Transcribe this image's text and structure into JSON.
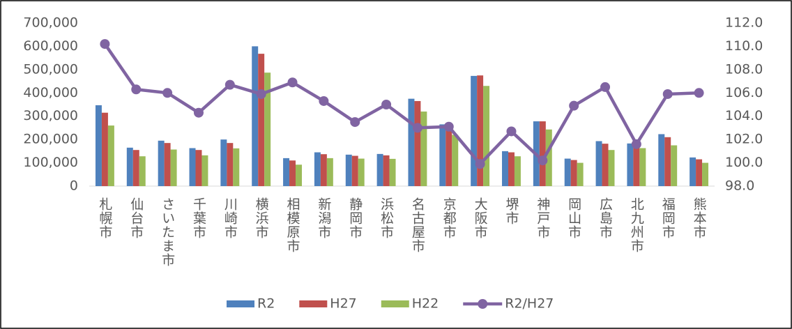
{
  "chart_data": {
    "type": "bar_line",
    "categories": [
      "札幌市",
      "仙台市",
      "さいたま市",
      "千葉市",
      "川崎市",
      "横浜市",
      "相模原市",
      "新潟市",
      "静岡市",
      "浜松市",
      "名古屋市",
      "京都市",
      "大阪市",
      "堺市",
      "神戸市",
      "岡山市",
      "広島市",
      "北九州市",
      "福岡市",
      "熊本市"
    ],
    "series": [
      {
        "name": "R2",
        "color": "#4f81bd",
        "values": [
          347000,
          165000,
          195000,
          163000,
          200000,
          600000,
          120000,
          145000,
          135000,
          138000,
          375000,
          265000,
          473000,
          150000,
          278000,
          118000,
          193000,
          183000,
          223000,
          123000
        ]
      },
      {
        "name": "H27",
        "color": "#c0504d",
        "values": [
          315000,
          155000,
          185000,
          155000,
          185000,
          568000,
          110000,
          137000,
          130000,
          132000,
          365000,
          255000,
          475000,
          145000,
          278000,
          112000,
          182000,
          175000,
          210000,
          115000
        ]
      },
      {
        "name": "H22",
        "color": "#9bbb59",
        "values": [
          260000,
          128000,
          157000,
          132000,
          162000,
          487000,
          92000,
          120000,
          118000,
          117000,
          320000,
          220000,
          430000,
          128000,
          243000,
          100000,
          155000,
          163000,
          175000,
          100000
        ]
      },
      {
        "name": "R2/H27",
        "color": "#8064a2",
        "axis": "y2",
        "values": [
          110.2,
          106.3,
          106.0,
          104.3,
          106.7,
          105.9,
          106.9,
          105.3,
          103.5,
          105.0,
          103.0,
          103.1,
          99.9,
          102.7,
          100.2,
          104.9,
          106.5,
          101.6,
          105.9,
          106.0
        ]
      }
    ],
    "ylim": [
      0,
      700000
    ],
    "yticks": [
      0,
      {
        "value": 100000,
        "label": "100,000"
      },
      {
        "value": 200000,
        "label": "200,000"
      },
      {
        "value": 300000,
        "label": "300,000"
      },
      {
        "value": 400000,
        "label": "400,000"
      },
      {
        "value": 500000,
        "label": "500,000"
      },
      {
        "value": 600000,
        "label": "600,000"
      },
      {
        "value": 700000,
        "label": "700,000"
      }
    ],
    "y2lim": [
      98,
      112
    ],
    "y2ticks": [
      {
        "value": 98,
        "label": "98.0"
      },
      {
        "value": 100,
        "label": "100.0"
      },
      {
        "value": 102,
        "label": "102.0"
      },
      {
        "value": 104,
        "label": "104.0"
      },
      {
        "value": 106,
        "label": "106.0"
      },
      {
        "value": 108,
        "label": "108.0"
      },
      {
        "value": 110,
        "label": "110.0"
      },
      {
        "value": 112,
        "label": "112.0"
      }
    ],
    "grid": false,
    "legend": "bottom"
  }
}
